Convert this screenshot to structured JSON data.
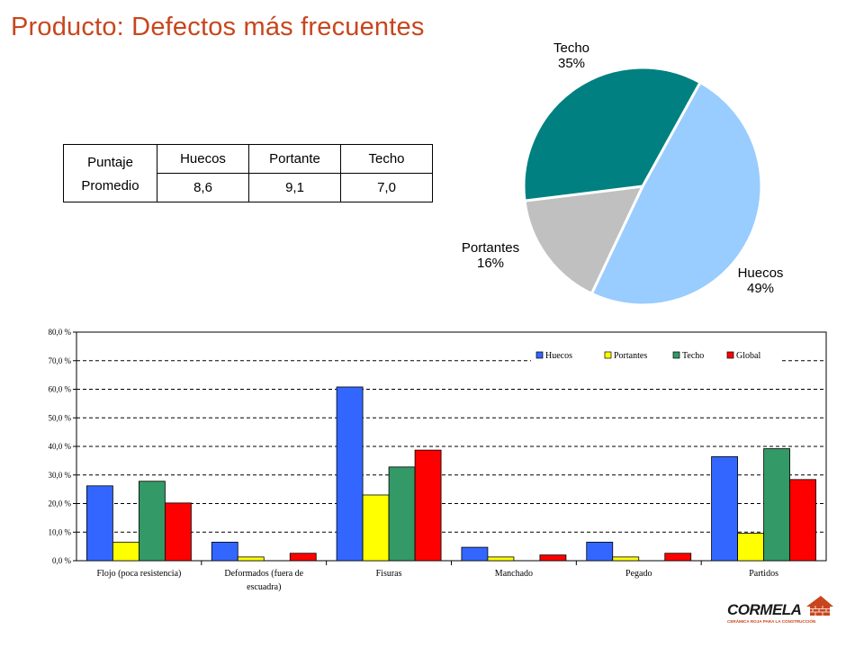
{
  "title": "Producto: Defectos más frecuentes",
  "score_table": {
    "label_line1": "Puntaje",
    "label_line2": "Promedio",
    "headers": [
      "Huecos",
      "Portante",
      "Techo"
    ],
    "values": [
      "8,6",
      "9,1",
      "7,0"
    ]
  },
  "chart_data": [
    {
      "type": "pie",
      "slices": [
        {
          "label": "Huecos",
          "value": 49,
          "value_label": "49%",
          "color": "#99ccff"
        },
        {
          "label": "Portantes",
          "value": 16,
          "value_label": "16%",
          "color": "#c0c0c0"
        },
        {
          "label": "Techo",
          "value": 35,
          "value_label": "35%",
          "color": "#008080"
        }
      ]
    },
    {
      "type": "bar",
      "categories": [
        "Flojo (poca resistencia)",
        "Deformados (fuera de escuadra)",
        "Fisuras",
        "Manchado",
        "Pegado",
        "Partidos"
      ],
      "series": [
        {
          "name": "Huecos",
          "color": "#3366ff",
          "values": [
            26.2,
            6.5,
            60.8,
            4.7,
            6.5,
            36.4
          ]
        },
        {
          "name": "Portantes",
          "color": "#ffff00",
          "values": [
            6.5,
            1.3,
            23.0,
            1.3,
            1.3,
            9.6
          ]
        },
        {
          "name": "Techo",
          "color": "#339966",
          "values": [
            27.8,
            0.0,
            32.8,
            0.0,
            0.0,
            39.2
          ]
        },
        {
          "name": "Global",
          "color": "#ff0000",
          "values": [
            20.2,
            2.6,
            38.7,
            2.0,
            2.6,
            28.4
          ]
        }
      ],
      "ylim": [
        0,
        80
      ],
      "yticks": [
        "0,0 %",
        "10,0 %",
        "20,0 %",
        "30,0 %",
        "40,0 %",
        "50,0 %",
        "60,0 %",
        "70,0 %",
        "80,0 %"
      ],
      "grid": true,
      "legend": "top-right"
    }
  ],
  "logo": {
    "name": "CORMELA",
    "tagline": "CERÁMICA ROJA PARA LA CONSTRUCCIÓN"
  }
}
